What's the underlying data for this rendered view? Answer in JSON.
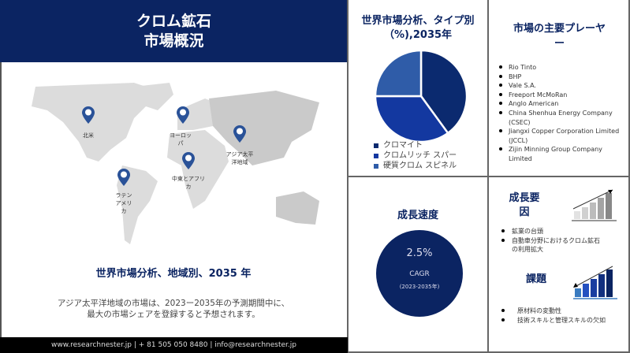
{
  "header": {
    "title_line1": "クロム鉱石",
    "title_line2": "市場概況"
  },
  "map": {
    "regions": [
      "北米",
      "ヨーロッパ",
      "アジア太平洋地域",
      "中東とアフリカ",
      "ラテンアメリカ"
    ],
    "pin_color": "#2a5298",
    "title": "世界市場分析、地域別、2035 年",
    "description_line1": "アジア太平洋地域の市場は、2023ー2035年の予測期間中に、",
    "description_line2": "最大の市場シェアを登録すると予想されます。"
  },
  "footer": {
    "text": "www.researchnester.jp | + 81 505 050 8480 | info@researchnester.jp"
  },
  "chart_data": {
    "type": "pie",
    "title": "世界市場分析、タイプ別（%),2035年",
    "categories": [
      "クロマイト",
      "クロムリッチ スパー",
      "硬質クロム スピネル"
    ],
    "values": [
      40,
      35,
      25
    ],
    "colors": [
      "#0b2a6f",
      "#1338a0",
      "#2f5ca8"
    ],
    "legend": "bottom"
  },
  "players": {
    "title": "市場の主要プレーヤー",
    "items": [
      "Rio Tinto",
      "BHP",
      "Vale S.A.",
      "Freeport McMoRan",
      "Anglo American",
      "China Shenhua Energy Company (CSEC)",
      "Jiangxi Copper Corporation Limited (JCCL)",
      "Zijin Minning Group Company Limited"
    ]
  },
  "cagr": {
    "title": "成長速度",
    "value": "2.5%",
    "label": "CAGR",
    "period": "(2023-2035年)"
  },
  "drivers": {
    "title": "成長要因",
    "items": [
      "鉱業の台頭",
      "自動車分野におけるクロム鉱石の利用拡大"
    ]
  },
  "challenges": {
    "title": "課題",
    "items": [
      "原材料の変動性",
      "技術スキルと管理スキルの欠如"
    ]
  }
}
